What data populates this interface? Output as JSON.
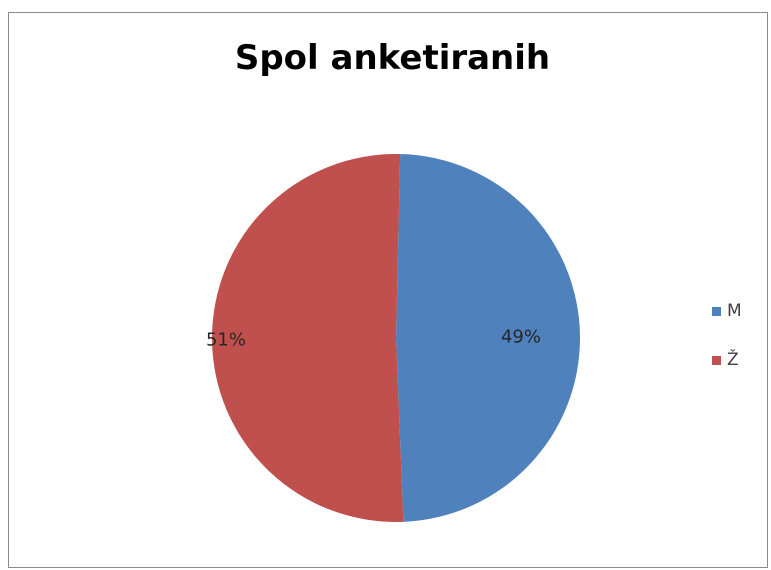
{
  "chart_data": {
    "type": "pie",
    "title": "Spol anketiranih",
    "categories": [
      "M",
      "Ž"
    ],
    "values": [
      49,
      51
    ],
    "data_labels": [
      "49%",
      "51%"
    ],
    "colors": [
      "#4f81bd",
      "#c0504d"
    ],
    "legend_position": "right"
  }
}
